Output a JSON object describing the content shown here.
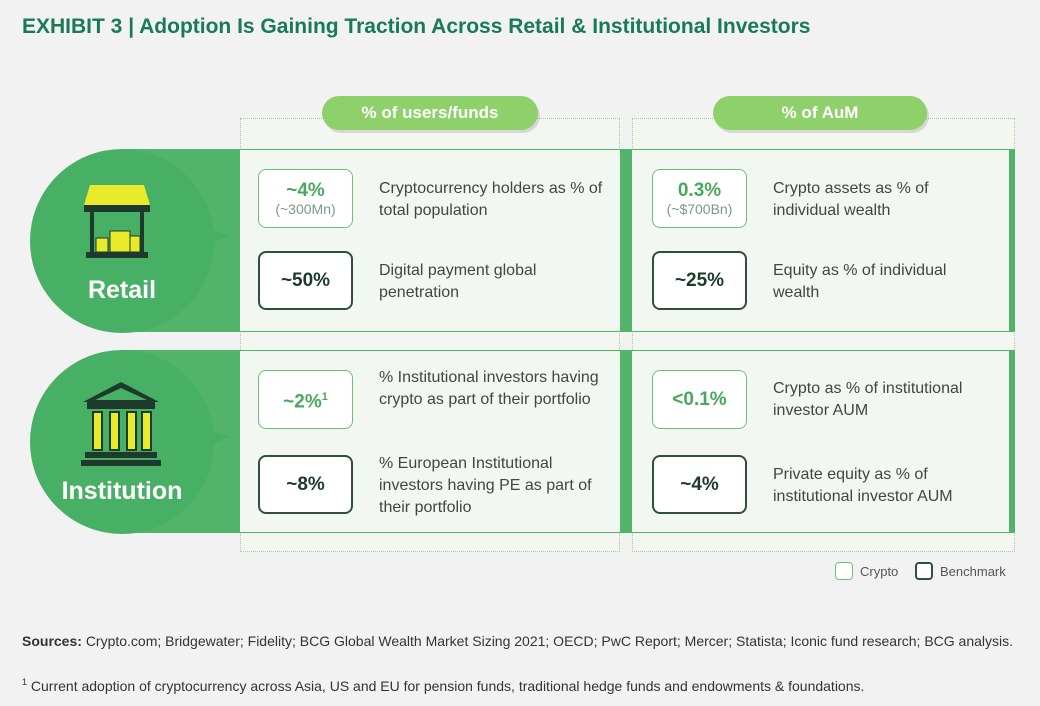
{
  "title": "EXHIBIT 3 | Adoption Is Gaining Traction Across Retail & Institutional Investors",
  "columns": {
    "users": "% of users/funds",
    "aum": "% of AuM"
  },
  "rows": {
    "retail": {
      "label": "Retail",
      "users": [
        {
          "type": "Crypto",
          "value": "~4%",
          "sub": "(~300Mn)",
          "desc": "Cryptocurrency holders as % of total population"
        },
        {
          "type": "Benchmark",
          "value": "~50%",
          "sub": "",
          "desc": "Digital payment global penetration"
        }
      ],
      "aum": [
        {
          "type": "Crypto",
          "value": "0.3%",
          "sub": "(~$700Bn)",
          "desc": "Crypto assets as % of individual wealth"
        },
        {
          "type": "Benchmark",
          "value": "~25%",
          "sub": "",
          "desc": "Equity as % of individual wealth"
        }
      ]
    },
    "institution": {
      "label": "Institution",
      "users": [
        {
          "type": "Crypto",
          "value": "~2%",
          "sup": "1",
          "desc": "% Institutional investors having crypto as part of their portfolio"
        },
        {
          "type": "Benchmark",
          "value": "~8%",
          "desc": "% European Institutional investors having PE as part of their portfolio"
        }
      ],
      "aum": [
        {
          "type": "Crypto",
          "value": "<0.1%",
          "desc": "Crypto as % of institutional investor AUM"
        },
        {
          "type": "Benchmark",
          "value": "~4%",
          "desc": "Private equity as % of institutional investor AUM"
        }
      ]
    }
  },
  "legend": {
    "crypto": "Crypto",
    "benchmark": "Benchmark"
  },
  "sources": {
    "label": "Sources:",
    "text": "Crypto.com; Bridgewater; Fidelity; BCG Global Wealth Market Sizing 2021; OECD; PwC Report; Mercer; Statista; Iconic fund research; BCG analysis."
  },
  "footnote": {
    "marker": "1",
    "text": "Current adoption of cryptocurrency across Asia, US and EU for pension funds, traditional hedge funds and endowments & foundations."
  },
  "colors": {
    "accent": "#197a56",
    "pill": "#8ed16b",
    "band": "#52b36b",
    "circle": "#48b064",
    "crypto_border": "#6cc17a",
    "benchmark_border": "#2f5040"
  }
}
